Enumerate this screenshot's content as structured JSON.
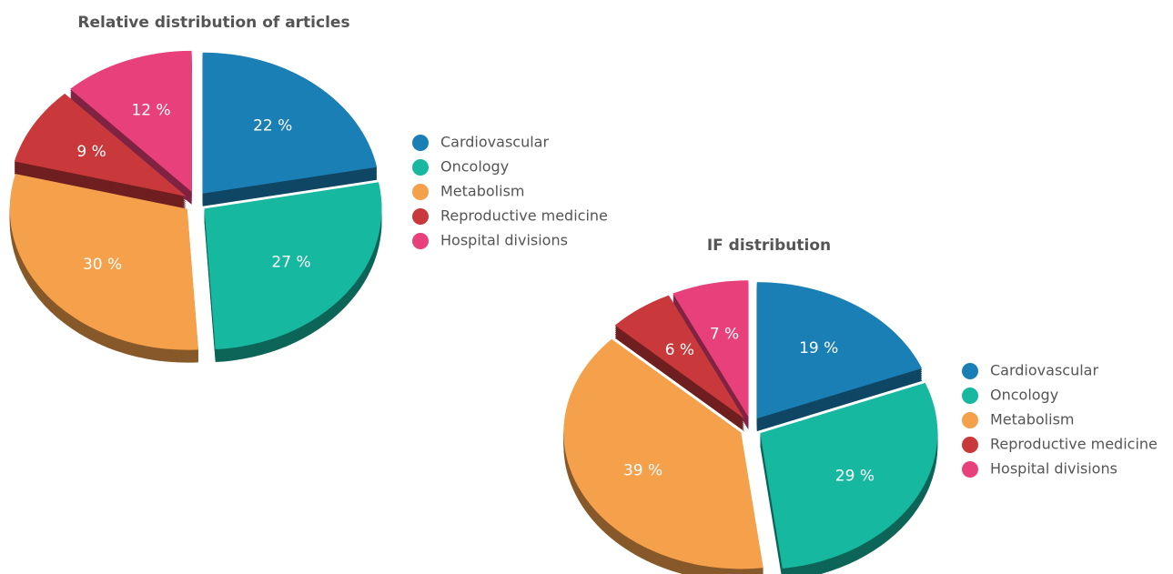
{
  "chart_data": [
    {
      "type": "pie",
      "title": "Relative distribution of articles",
      "categories": [
        "Cardiovascular",
        "Oncology",
        "Metabolism",
        "Reproductive medicine",
        "Hospital divisions"
      ],
      "values": [
        22,
        27,
        30,
        9,
        12
      ],
      "value_labels": [
        "22 %",
        "27 %",
        "30 %",
        "9 %",
        "12 %"
      ],
      "colors": [
        "#1a7fb5",
        "#17b8a0",
        "#f5a04a",
        "#c9383a",
        "#e8407a"
      ]
    },
    {
      "type": "pie",
      "title": "IF distribution",
      "categories": [
        "Cardiovascular",
        "Oncology",
        "Metabolism",
        "Reproductive medicine",
        "Hospital divisions"
      ],
      "values": [
        19,
        29,
        39,
        6,
        7
      ],
      "value_labels": [
        "19 %",
        "29 %",
        "39 %",
        "6 %",
        "7 %"
      ],
      "colors": [
        "#1a7fb5",
        "#17b8a0",
        "#f5a04a",
        "#c9383a",
        "#e8407a"
      ]
    }
  ]
}
